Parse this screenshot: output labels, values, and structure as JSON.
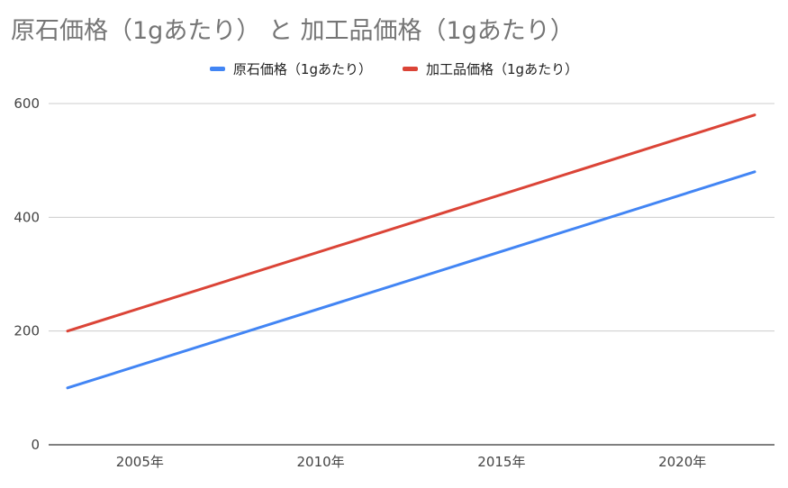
{
  "chart_data": {
    "type": "line",
    "title": "原石価格（1gあたり） と 加工品価格（1gあたり）",
    "x": [
      2003,
      2022
    ],
    "x_ticks": [
      2005,
      2010,
      2015,
      2020
    ],
    "x_tick_labels": [
      "2005年",
      "2010年",
      "2015年",
      "2020年"
    ],
    "xlim": [
      2003,
      2022
    ],
    "ylim": [
      0,
      600
    ],
    "y_ticks": [
      0,
      200,
      400,
      600
    ],
    "y_tick_labels": [
      "0",
      "200",
      "400",
      "600"
    ],
    "grid": true,
    "legend_position": "top",
    "series": [
      {
        "name": "原石価格（1gあたり）",
        "color": "#4285f4",
        "values": [
          100,
          480
        ]
      },
      {
        "name": "加工品価格（1gあたり）",
        "color": "#db4437",
        "values": [
          200,
          580
        ]
      }
    ]
  }
}
